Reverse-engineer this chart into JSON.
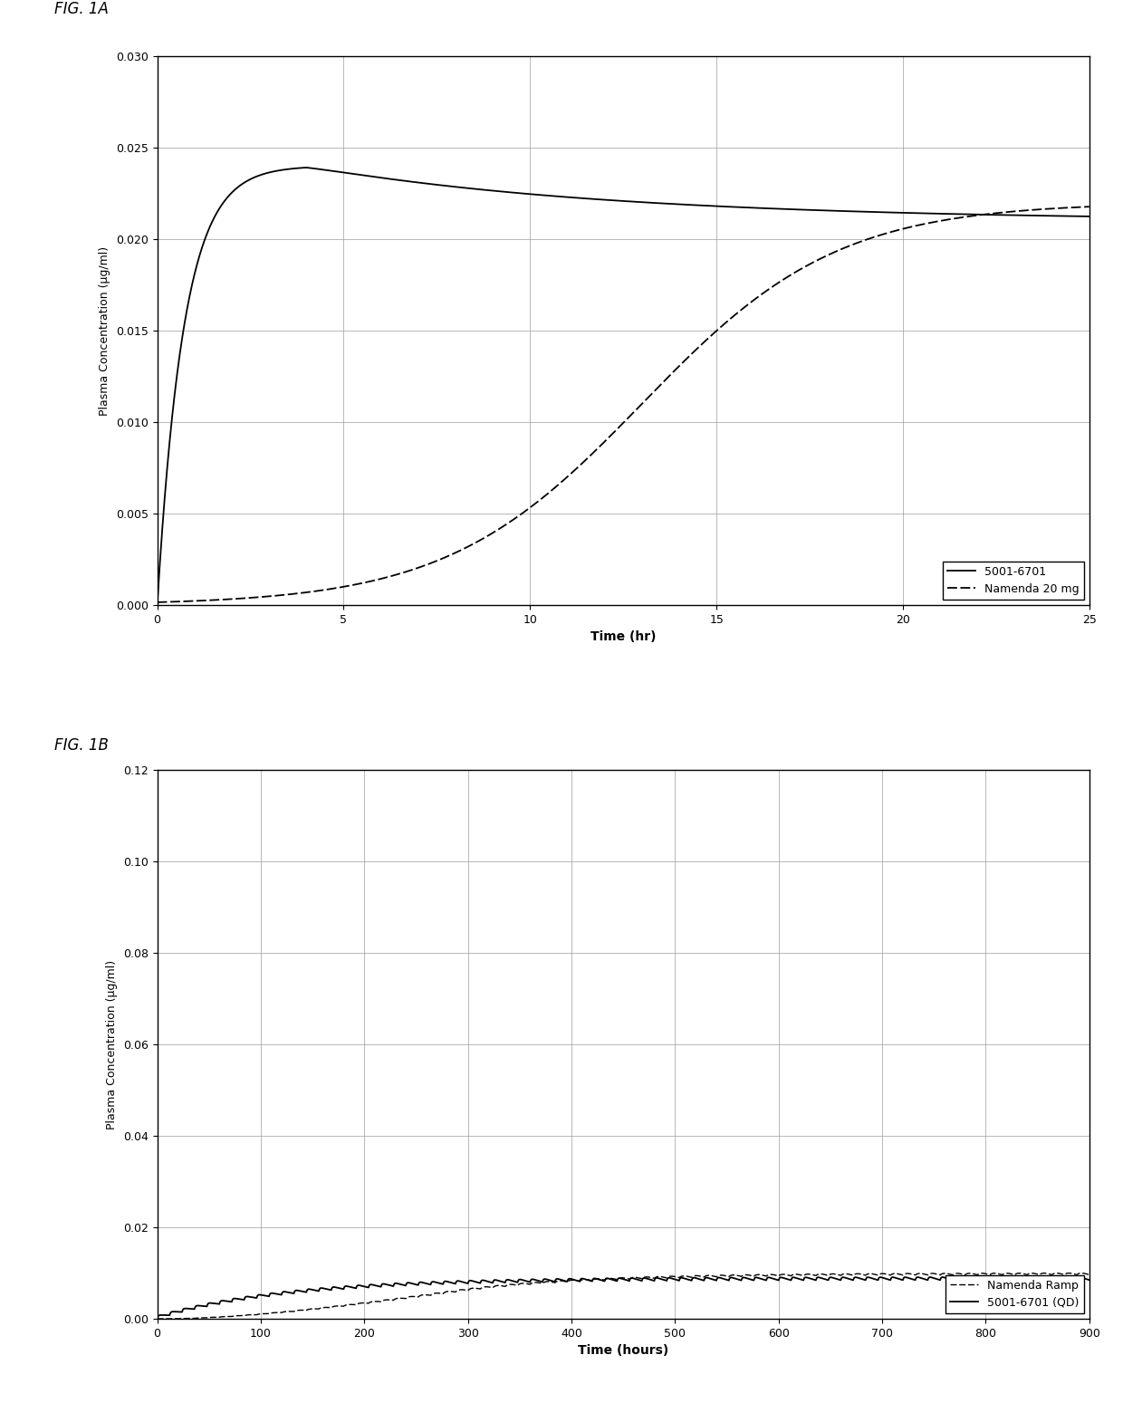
{
  "fig1a": {
    "title": "FIG. 1A",
    "xlabel": "Time (hr)",
    "ylabel": "Plasma Concentration (μg/ml)",
    "xlim": [
      0,
      25
    ],
    "ylim": [
      0,
      0.03
    ],
    "yticks": [
      0,
      0.005,
      0.01,
      0.015,
      0.02,
      0.025,
      0.03
    ],
    "xticks": [
      0,
      5,
      10,
      15,
      20,
      25
    ],
    "legend": [
      "5001-6701",
      "Namenda 20 mg"
    ],
    "line_color": "#000000",
    "background": "#ffffff"
  },
  "fig1b": {
    "title": "FIG. 1B",
    "xlabel": "Time (hours)",
    "ylabel": "Plasma Concentration (μg/ml)",
    "xlim": [
      0,
      900
    ],
    "ylim": [
      0,
      0.12
    ],
    "yticks": [
      0,
      0.02,
      0.04,
      0.06,
      0.08,
      0.1,
      0.12
    ],
    "xticks": [
      0,
      100,
      200,
      300,
      400,
      500,
      600,
      700,
      800,
      900
    ],
    "legend": [
      "Namenda Ramp",
      "5001-6701 (QD)"
    ],
    "line_color": "#000000",
    "background": "#ffffff"
  }
}
